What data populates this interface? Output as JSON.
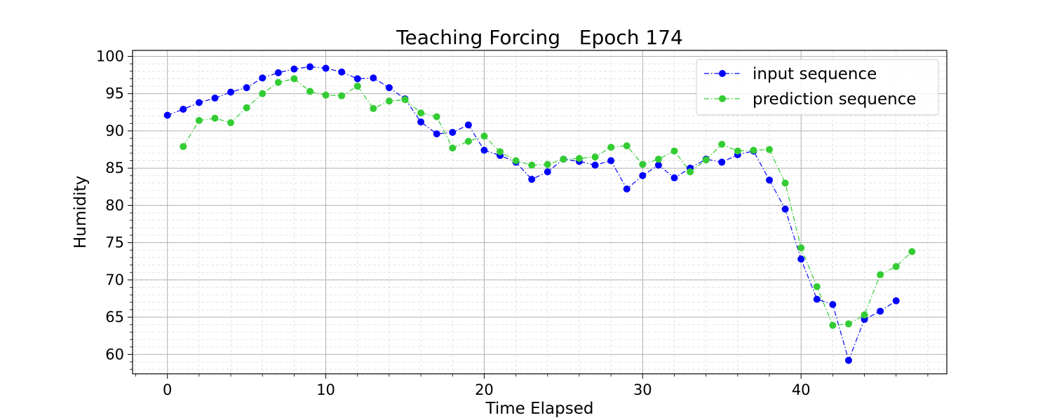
{
  "chart_data": {
    "type": "line",
    "title": "Teaching Forcing   Epoch 174",
    "xlabel": "Time Elapsed",
    "ylabel": "Humidity",
    "xlim": [
      -2.2,
      49.2
    ],
    "ylim": [
      57.4,
      100.8
    ],
    "x_ticks": [
      0,
      10,
      20,
      30,
      40
    ],
    "y_ticks": [
      60,
      65,
      70,
      75,
      80,
      85,
      90,
      95,
      100
    ],
    "grid": true,
    "minor_grid": true,
    "legend_position": "top-right",
    "series": [
      {
        "name": "input sequence",
        "color": "#0000ff",
        "line_style": "dash-dot",
        "marker": "circle",
        "x": [
          0,
          1,
          2,
          3,
          4,
          5,
          6,
          7,
          8,
          9,
          10,
          11,
          12,
          13,
          14,
          15,
          16,
          17,
          18,
          19,
          20,
          21,
          22,
          23,
          24,
          25,
          26,
          27,
          28,
          29,
          30,
          31,
          32,
          33,
          34,
          35,
          36,
          37,
          38,
          39,
          40,
          41,
          42,
          43,
          44,
          45,
          46
        ],
        "y": [
          92.1,
          92.9,
          93.8,
          94.4,
          95.2,
          95.8,
          97.1,
          97.8,
          98.3,
          98.6,
          98.4,
          97.9,
          97.0,
          97.1,
          95.8,
          94.3,
          91.2,
          89.6,
          89.8,
          90.8,
          87.4,
          86.7,
          85.8,
          83.5,
          84.5,
          86.2,
          85.9,
          85.4,
          86.0,
          82.2,
          84.0,
          85.4,
          83.7,
          85.0,
          86.2,
          85.8,
          86.8,
          87.3,
          83.4,
          79.5,
          72.8,
          67.4,
          66.7,
          59.2,
          64.7,
          65.8,
          67.2
        ]
      },
      {
        "name": "prediction sequence",
        "color": "#33cc33",
        "line_style": "dash-dot",
        "marker": "circle",
        "x": [
          1,
          2,
          3,
          4,
          5,
          6,
          7,
          8,
          9,
          10,
          11,
          12,
          13,
          14,
          15,
          16,
          17,
          18,
          19,
          20,
          21,
          22,
          23,
          24,
          25,
          26,
          27,
          28,
          29,
          30,
          31,
          32,
          33,
          34,
          35,
          36,
          37,
          38,
          39,
          40,
          41,
          42,
          43,
          44,
          45,
          46,
          47
        ],
        "y": [
          87.9,
          91.4,
          91.7,
          91.1,
          93.1,
          95.0,
          96.5,
          97.0,
          95.3,
          94.8,
          94.7,
          96.0,
          93.0,
          94.0,
          94.2,
          92.4,
          91.9,
          87.7,
          88.6,
          89.3,
          87.2,
          86.0,
          85.4,
          85.5,
          86.2,
          86.3,
          86.5,
          87.8,
          88.0,
          85.5,
          86.2,
          87.3,
          84.5,
          86.1,
          88.2,
          87.3,
          87.4,
          87.5,
          83.0,
          74.3,
          69.1,
          63.9,
          64.1,
          65.3,
          70.7,
          71.8,
          73.8
        ]
      }
    ]
  }
}
